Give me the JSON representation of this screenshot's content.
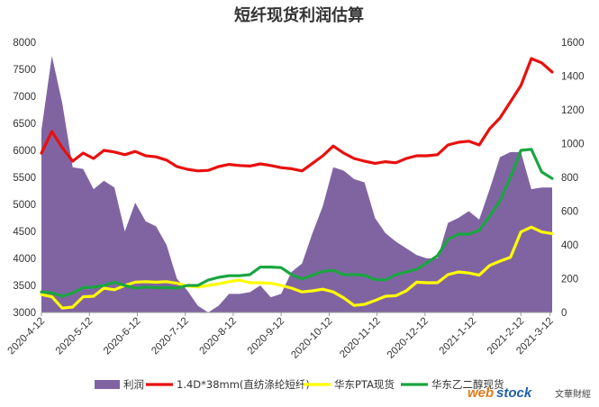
{
  "chart_data": {
    "type": "area+line",
    "title": "短纤现货利润估算",
    "left_axis": {
      "ylim": [
        3000,
        8000
      ],
      "ticks": [
        3000,
        3500,
        4000,
        4500,
        5000,
        5500,
        6000,
        6500,
        7000,
        7500,
        8000
      ]
    },
    "right_axis": {
      "ylim": [
        0,
        1600
      ],
      "ticks": [
        0,
        200,
        400,
        600,
        800,
        1000,
        1200,
        1400,
        1600
      ]
    },
    "x_tick_labels": [
      "2020-4-12",
      "2020-5-12",
      "2020-6-12",
      "2020-7-12",
      "2020-8-12",
      "2020-9-12",
      "2020-10-12",
      "2020-11-12",
      "2020-12-12",
      "2021-1-12",
      "2021-2-12",
      "2021-3-12"
    ],
    "x_range": [
      0,
      49
    ],
    "x_tick_positions": [
      0,
      4.6,
      9.2,
      13.8,
      18.4,
      23.0,
      27.6,
      32.2,
      36.8,
      41.4,
      46.0,
      48.8
    ],
    "series": [
      {
        "name": "利润",
        "type": "area",
        "axis": "right",
        "color": "#8064a2",
        "x": [
          0,
          1,
          2,
          3,
          4,
          5,
          6,
          7,
          8,
          9,
          10,
          11,
          12,
          13,
          14,
          15,
          16,
          17,
          18,
          19,
          20,
          21,
          22,
          23,
          24,
          25,
          26,
          27,
          28,
          29,
          30,
          31,
          32,
          33,
          34,
          35,
          36,
          37,
          38,
          39,
          40,
          41,
          42,
          43,
          44,
          45,
          46,
          47,
          48,
          49
        ],
        "values": [
          1080,
          1520,
          1240,
          860,
          850,
          730,
          780,
          740,
          480,
          650,
          540,
          510,
          400,
          200,
          130,
          40,
          -20,
          40,
          110,
          110,
          120,
          160,
          90,
          110,
          240,
          290,
          470,
          630,
          860,
          840,
          790,
          770,
          560,
          470,
          420,
          380,
          340,
          320,
          320,
          530,
          560,
          600,
          550,
          730,
          920,
          950,
          950,
          730,
          740,
          740
        ]
      },
      {
        "name": "1.4D*38mm(直纺涤纶短纤)",
        "type": "line",
        "axis": "left",
        "color": "#e8100e",
        "x": [
          0,
          1,
          2,
          3,
          4,
          5,
          6,
          7,
          8,
          9,
          10,
          11,
          12,
          13,
          14,
          15,
          16,
          17,
          18,
          19,
          20,
          21,
          22,
          23,
          24,
          25,
          26,
          27,
          28,
          29,
          30,
          31,
          32,
          33,
          34,
          35,
          36,
          37,
          38,
          39,
          40,
          41,
          42,
          43,
          44,
          45,
          46,
          47,
          48,
          49
        ],
        "values": [
          5950,
          6350,
          6050,
          5800,
          5950,
          5850,
          6000,
          5970,
          5920,
          5980,
          5900,
          5880,
          5820,
          5700,
          5650,
          5620,
          5630,
          5700,
          5740,
          5720,
          5710,
          5750,
          5720,
          5680,
          5660,
          5620,
          5760,
          5900,
          6080,
          5950,
          5850,
          5800,
          5760,
          5790,
          5770,
          5850,
          5900,
          5900,
          5920,
          6100,
          6150,
          6170,
          6100,
          6400,
          6600,
          6900,
          7200,
          7700,
          7620,
          7450
        ]
      },
      {
        "name": "华东PTA现货",
        "type": "line",
        "axis": "left",
        "color": "#ffff00",
        "x": [
          0,
          1,
          2,
          3,
          4,
          5,
          6,
          7,
          8,
          9,
          10,
          11,
          12,
          13,
          14,
          15,
          16,
          17,
          18,
          19,
          20,
          21,
          22,
          23,
          24,
          25,
          26,
          27,
          28,
          29,
          30,
          31,
          32,
          33,
          34,
          35,
          36,
          37,
          38,
          39,
          40,
          41,
          42,
          43,
          44,
          45,
          46,
          47,
          48,
          49
        ],
        "values": [
          3330,
          3290,
          3080,
          3100,
          3290,
          3300,
          3450,
          3420,
          3500,
          3560,
          3570,
          3560,
          3570,
          3540,
          3490,
          3470,
          3500,
          3530,
          3570,
          3600,
          3550,
          3550,
          3540,
          3500,
          3450,
          3380,
          3400,
          3430,
          3380,
          3270,
          3130,
          3150,
          3220,
          3300,
          3310,
          3400,
          3560,
          3550,
          3550,
          3700,
          3750,
          3730,
          3690,
          3870,
          3950,
          4020,
          4490,
          4580,
          4490,
          4460
        ]
      },
      {
        "name": "华东乙二醇现货",
        "type": "line",
        "axis": "left",
        "color": "#1aa540",
        "x": [
          0,
          1,
          2,
          3,
          4,
          5,
          6,
          7,
          8,
          9,
          10,
          11,
          12,
          13,
          14,
          15,
          16,
          17,
          18,
          19,
          20,
          21,
          22,
          23,
          24,
          25,
          26,
          27,
          28,
          29,
          30,
          31,
          32,
          33,
          34,
          35,
          36,
          37,
          38,
          39,
          40,
          41,
          42,
          43,
          44,
          45,
          46,
          47,
          48,
          49
        ],
        "values": [
          3380,
          3360,
          3300,
          3360,
          3460,
          3470,
          3500,
          3560,
          3500,
          3450,
          3470,
          3460,
          3460,
          3450,
          3500,
          3500,
          3600,
          3650,
          3680,
          3680,
          3700,
          3840,
          3840,
          3830,
          3700,
          3620,
          3690,
          3760,
          3780,
          3700,
          3700,
          3690,
          3610,
          3600,
          3700,
          3750,
          3800,
          3920,
          4050,
          4350,
          4450,
          4450,
          4520,
          4780,
          5070,
          5500,
          6000,
          6020,
          5600,
          5480
        ]
      }
    ],
    "legend": [
      "利润",
      "1.4D*38mm(直纺涤纶短纤)",
      "华东PTA现货",
      "华东乙二醇现货"
    ],
    "legend_placement": "bottom",
    "grid": false
  },
  "watermark": {
    "web": "web",
    "stock": "stock",
    "cn": "文華財經"
  }
}
